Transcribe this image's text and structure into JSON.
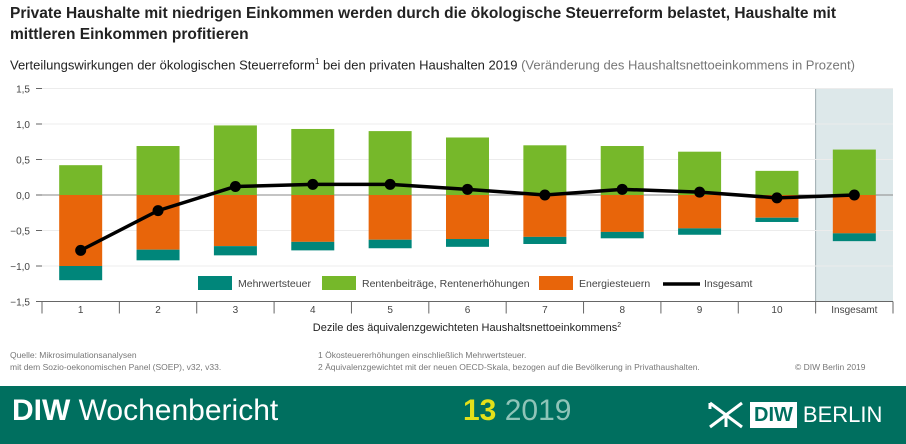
{
  "header": {
    "title": "Private Haushalte mit niedrigen Einkommen werden durch die ökologische Steuerreform belastet, Haushalte mit mittleren Einkommen profitieren",
    "subtitle": "Verteilungswirkungen der ökologischen Steuerreform",
    "subtitle_sup": "1",
    "subtitle_rest": " bei den privaten Haushalten 2019 ",
    "subtitle_unit": "(Veränderung des Haushaltsnettoeinkommens in Prozent)"
  },
  "chart_data": {
    "type": "bar",
    "stacked": true,
    "categories": [
      "1",
      "2",
      "3",
      "4",
      "5",
      "6",
      "7",
      "8",
      "9",
      "10",
      "Insgesamt"
    ],
    "xlabel": "Dezile des äquivalenzgewichteten Haushaltsnettoeinkommens",
    "xlabel_sup": "2",
    "ylim": [
      -1.5,
      1.5
    ],
    "yticks": [
      "1,5",
      "1,0",
      "0,5",
      "0,0",
      "−0,5",
      "−1,0",
      "−1,5"
    ],
    "ytick_values": [
      1.5,
      1.0,
      0.5,
      0,
      -0.5,
      -1.0,
      -1.5
    ],
    "grid": true,
    "legend_position": "bottom",
    "highlighted_category": "Insgesamt",
    "series": [
      {
        "name": "Rentenbeiträge, Rentenerhöhungen",
        "kind": "bar",
        "color": "#76b82a",
        "values": [
          0.42,
          0.69,
          0.98,
          0.93,
          0.9,
          0.81,
          0.7,
          0.69,
          0.61,
          0.34,
          0.64
        ]
      },
      {
        "name": "Energiesteuern",
        "kind": "bar",
        "color": "#e8650a",
        "values": [
          -1.0,
          -0.77,
          -0.72,
          -0.66,
          -0.63,
          -0.62,
          -0.59,
          -0.52,
          -0.47,
          -0.32,
          -0.54
        ]
      },
      {
        "name": "Mehrwertsteuer",
        "kind": "bar",
        "color": "#00867a",
        "values": [
          -0.2,
          -0.15,
          -0.13,
          -0.12,
          -0.12,
          -0.11,
          -0.1,
          -0.09,
          -0.09,
          -0.06,
          -0.11
        ]
      },
      {
        "name": "Insgesamt",
        "kind": "line",
        "color": "#000000",
        "values": [
          -0.78,
          -0.22,
          0.12,
          0.15,
          0.15,
          0.08,
          0.0,
          0.08,
          0.04,
          -0.04,
          0.0
        ]
      }
    ],
    "legend_order": [
      "Mehrwertsteuer",
      "Rentenbeiträge, Rentenerhöhungen",
      "Energiesteuern",
      "Insgesamt"
    ]
  },
  "notes": {
    "source_line1": "Quelle: Mikrosimulationsanalysen",
    "source_line2": "mit dem Sozio-oekonomischen Panel (SOEP), v32, v33.",
    "footnote1": "1 Ökosteuererhöhungen einschließlich Mehrwertsteuer.",
    "footnote2": "2 Äquivalenzgewichtet mit der neuen OECD-Skala, bezogen auf die Bevölkerung in Privathaushalten.",
    "copyright": "© DIW Berlin 2019"
  },
  "footer": {
    "brand_bold": "DIW",
    "brand_rest": " Wochenbericht",
    "issue_number": "13",
    "issue_year": " 2019",
    "logo_diw": "DIW",
    "logo_berlin": "BERLIN",
    "bg_color": "#006f5f"
  }
}
